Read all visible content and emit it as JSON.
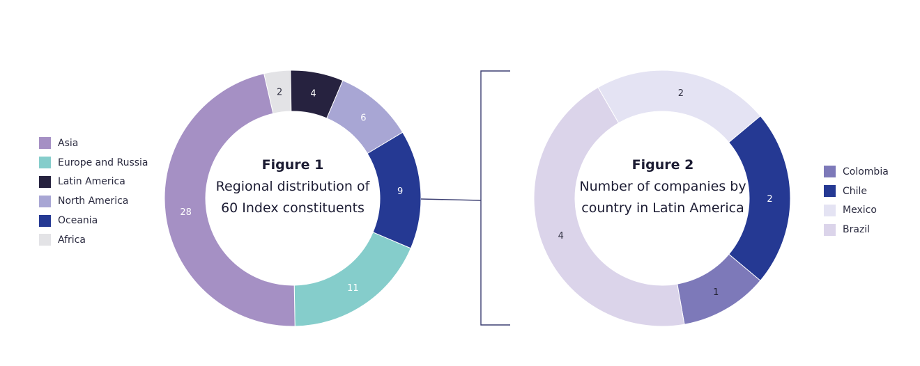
{
  "chart_data": [
    {
      "type": "pie",
      "title": "Figure 1",
      "subtitle": "Regional distribution of 60 Index constituents",
      "slices": [
        {
          "label": "Africa",
          "value": 2,
          "color": "#e3e3e6",
          "text_color": "#333344"
        },
        {
          "label": "Latin America",
          "value": 4,
          "color": "#26223f",
          "text_color": "#ffffff"
        },
        {
          "label": "North America",
          "value": 6,
          "color": "#a8a6d4",
          "text_color": "#ffffff"
        },
        {
          "label": "Oceania",
          "value": 9,
          "color": "#253993",
          "text_color": "#ffffff"
        },
        {
          "label": "Europe and Russia",
          "value": 11,
          "color": "#85cdcb",
          "text_color": "#ffffff"
        },
        {
          "label": "Asia",
          "value": 28,
          "color": "#a590c4",
          "text_color": "#ffffff"
        }
      ],
      "legend": [
        "Asia",
        "Europe and Russia",
        "Latin America",
        "North America",
        "Oceania",
        "Africa"
      ],
      "legend_position": "left"
    },
    {
      "type": "pie",
      "title": "Figure 2",
      "subtitle": "Number of companies by country in Latin America",
      "slices": [
        {
          "label": "Mexico",
          "value": 2,
          "color": "#e4e3f3",
          "text_color": "#333344"
        },
        {
          "label": "Chile",
          "value": 2,
          "color": "#253993",
          "text_color": "#ffffff"
        },
        {
          "label": "Colombia",
          "value": 1,
          "color": "#7d79b9",
          "text_color": "#222233"
        },
        {
          "label": "Brazil",
          "value": 4,
          "color": "#dbd4ea",
          "text_color": "#333344"
        }
      ],
      "legend": [
        "Colombia",
        "Chile",
        "Mexico",
        "Brazil"
      ],
      "legend_position": "right"
    }
  ]
}
